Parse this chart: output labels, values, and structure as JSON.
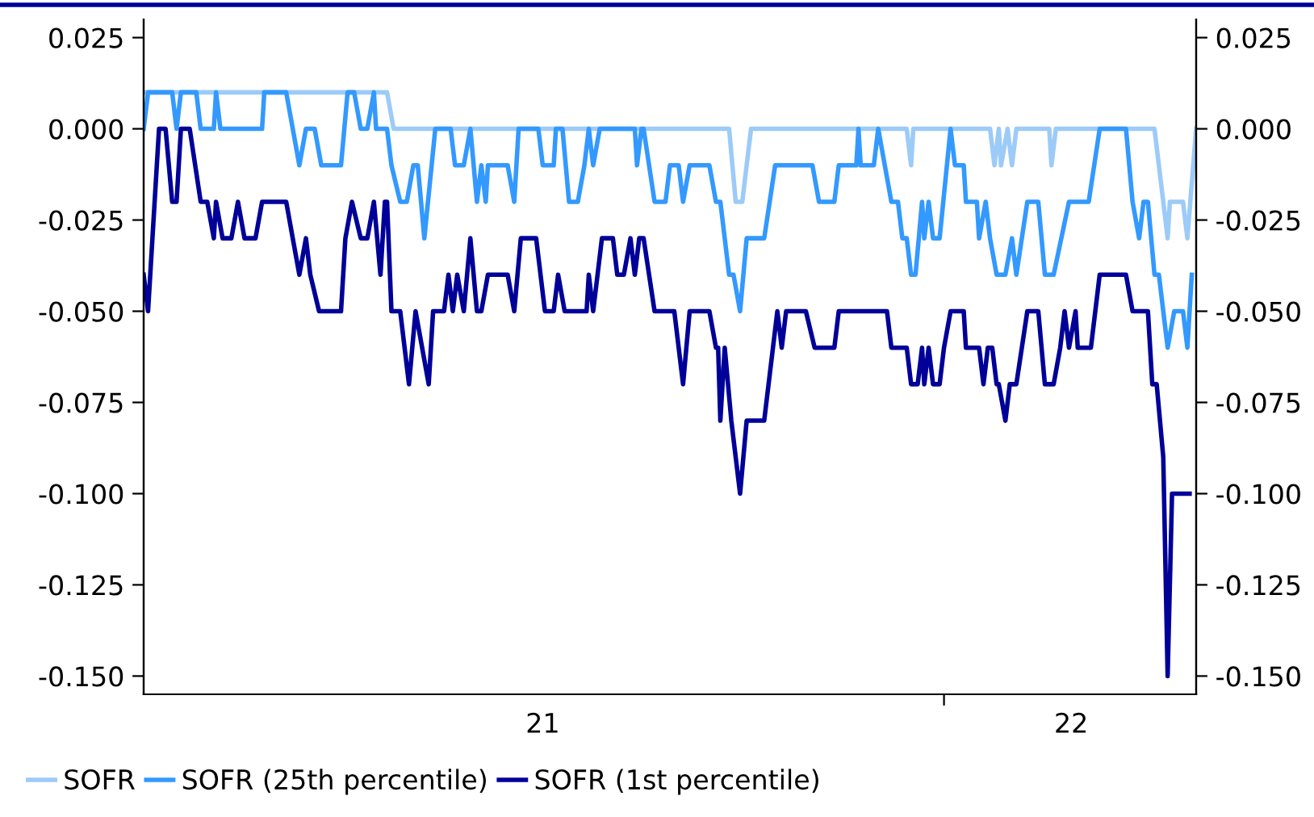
{
  "chart_data": {
    "type": "line",
    "xlim": [
      "2021-01-01",
      "2022-04-26"
    ],
    "xticks": [
      {
        "value": "2021-07-02",
        "label": "21"
      },
      {
        "value": "2022-01-01",
        "label": null
      },
      {
        "value": "2022-02-28",
        "label": "22"
      }
    ],
    "ylim": [
      -0.155,
      0.03
    ],
    "yticks": [
      {
        "value": 0.025,
        "label": "0.025"
      },
      {
        "value": 0,
        "label": "0.000"
      },
      {
        "value": -0.025,
        "label": "-0.025"
      },
      {
        "value": -0.05,
        "label": "-0.050"
      },
      {
        "value": -0.075,
        "label": "-0.075"
      },
      {
        "value": -0.1,
        "label": "-0.100"
      },
      {
        "value": -0.125,
        "label": "-0.125"
      },
      {
        "value": -0.15,
        "label": "-0.150"
      }
    ],
    "y2lim": [
      -0.155,
      0.03
    ],
    "y2ticks": [
      {
        "value": 0.025,
        "label": "0.025"
      },
      {
        "value": 0,
        "label": "0.000"
      },
      {
        "value": -0.025,
        "label": "-0.025"
      },
      {
        "value": -0.05,
        "label": "-0.050"
      },
      {
        "value": -0.075,
        "label": "-0.075"
      },
      {
        "value": -0.1,
        "label": "-0.100"
      },
      {
        "value": -0.125,
        "label": "-0.125"
      },
      {
        "value": -0.15,
        "label": "-0.150"
      }
    ],
    "grid": false,
    "legend": "bottom left",
    "marker": "none",
    "line_style": "solid",
    "series": [
      {
        "name": "SOFR",
        "color": "#9dcbf8",
        "x": [
          "2021-01-01",
          "2021-04-22",
          "2021-04-25",
          "2021-09-25",
          "2021-09-28",
          "2021-10-01",
          "2021-10-03",
          "2021-10-05",
          "2021-12-15",
          "2021-12-17",
          "2021-12-18",
          "2022-01-22",
          "2022-01-24",
          "2022-01-26",
          "2022-01-27",
          "2022-01-30",
          "2022-02-01",
          "2022-02-03",
          "2022-02-18",
          "2022-02-19",
          "2022-02-21",
          "2022-04-07",
          "2022-04-13",
          "2022-04-14",
          "2022-04-20",
          "2022-04-22",
          "2022-04-26"
        ],
        "values": [
          0.01,
          0.01,
          0,
          0,
          -0.02,
          -0.02,
          -0.01,
          0,
          0,
          -0.01,
          0,
          0,
          -0.01,
          0,
          -0.01,
          0,
          -0.01,
          0,
          0,
          -0.01,
          0,
          0,
          -0.03,
          -0.02,
          -0.02,
          -0.03,
          0
        ]
      },
      {
        "name": "SOFR (25th percentile)",
        "color": "#3399ff",
        "x": [
          "2021-01-01",
          "2021-01-03",
          "2021-01-14",
          "2021-01-16",
          "2021-01-18",
          "2021-01-25",
          "2021-01-27",
          "2021-02-02",
          "2021-02-03",
          "2021-02-05",
          "2021-02-24",
          "2021-02-25",
          "2021-03-07",
          "2021-03-10",
          "2021-03-13",
          "2021-03-16",
          "2021-03-20",
          "2021-03-23",
          "2021-04-01",
          "2021-04-04",
          "2021-04-07",
          "2021-04-10",
          "2021-04-13",
          "2021-04-16",
          "2021-04-17",
          "2021-04-22",
          "2021-04-24",
          "2021-04-28",
          "2021-05-01",
          "2021-05-04",
          "2021-05-06",
          "2021-05-09",
          "2021-05-14",
          "2021-05-21",
          "2021-05-23",
          "2021-05-27",
          "2021-05-30",
          "2021-06-02",
          "2021-06-04",
          "2021-06-06",
          "2021-06-07",
          "2021-06-16",
          "2021-06-19",
          "2021-06-21",
          "2021-06-30",
          "2021-07-02",
          "2021-07-07",
          "2021-07-08",
          "2021-07-11",
          "2021-07-14",
          "2021-07-18",
          "2021-07-21",
          "2021-07-23",
          "2021-07-25",
          "2021-07-28",
          "2021-08-13",
          "2021-08-14",
          "2021-08-16",
          "2021-08-17",
          "2021-08-22",
          "2021-08-27",
          "2021-08-29",
          "2021-09-02",
          "2021-09-04",
          "2021-09-07",
          "2021-09-16",
          "2021-09-19",
          "2021-09-21",
          "2021-09-25",
          "2021-09-27",
          "2021-09-30",
          "2021-10-03",
          "2021-10-11",
          "2021-10-16",
          "2021-11-02",
          "2021-11-05",
          "2021-11-12",
          "2021-11-14",
          "2021-11-22",
          "2021-11-23",
          "2021-11-24",
          "2021-11-30",
          "2021-12-02",
          "2021-12-05",
          "2021-12-08",
          "2021-12-11",
          "2021-12-13",
          "2021-12-15",
          "2021-12-17",
          "2021-12-19",
          "2021-12-22",
          "2021-12-23",
          "2021-12-25",
          "2021-12-27",
          "2021-12-30",
          "2022-01-04",
          "2022-01-06",
          "2022-01-10",
          "2022-01-11",
          "2022-01-16",
          "2022-01-17",
          "2022-01-20",
          "2022-01-22",
          "2022-01-25",
          "2022-01-29",
          "2022-02-01",
          "2022-02-03",
          "2022-02-08",
          "2022-02-13",
          "2022-02-16",
          "2022-02-20",
          "2022-02-27",
          "2022-03-08",
          "2022-03-13",
          "2022-03-25",
          "2022-03-28",
          "2022-03-31",
          "2022-04-02",
          "2022-04-04",
          "2022-04-07",
          "2022-04-09",
          "2022-04-13",
          "2022-04-16",
          "2022-04-20",
          "2022-04-22",
          "2022-04-24"
        ],
        "values": [
          0,
          0.01,
          0.01,
          0,
          0.01,
          0.01,
          0,
          0,
          0.01,
          0,
          0,
          0.01,
          0.01,
          0,
          -0.01,
          0,
          0,
          -0.01,
          -0.01,
          0.01,
          0.01,
          0,
          0,
          0.01,
          0,
          0,
          -0.01,
          -0.02,
          -0.02,
          -0.01,
          -0.01,
          -0.03,
          0,
          0,
          -0.01,
          -0.01,
          0,
          -0.02,
          -0.01,
          -0.02,
          -0.01,
          -0.01,
          -0.02,
          0,
          0,
          -0.01,
          -0.01,
          0,
          0,
          -0.02,
          -0.02,
          -0.01,
          0,
          -0.01,
          0,
          0,
          -0.01,
          0,
          0,
          -0.02,
          -0.02,
          -0.01,
          -0.01,
          -0.02,
          -0.01,
          -0.01,
          -0.02,
          -0.02,
          -0.04,
          -0.04,
          -0.05,
          -0.03,
          -0.03,
          -0.01,
          -0.01,
          -0.02,
          -0.02,
          -0.01,
          -0.01,
          0,
          -0.01,
          -0.01,
          0,
          -0.01,
          -0.02,
          -0.02,
          -0.03,
          -0.03,
          -0.04,
          -0.04,
          -0.02,
          -0.03,
          -0.02,
          -0.03,
          -0.03,
          0,
          -0.01,
          -0.01,
          -0.02,
          -0.02,
          -0.03,
          -0.02,
          -0.03,
          -0.04,
          -0.04,
          -0.03,
          -0.04,
          -0.02,
          -0.02,
          -0.04,
          -0.04,
          -0.02,
          -0.02,
          0,
          0,
          -0.02,
          -0.03,
          -0.02,
          -0.02,
          -0.04,
          -0.04,
          -0.06,
          -0.05,
          -0.05,
          -0.06,
          -0.04
        ]
      },
      {
        "name": "SOFR (1st percentile)",
        "color": "#000099",
        "x": [
          "2021-01-01",
          "2021-01-03",
          "2021-01-08",
          "2021-01-11",
          "2021-01-14",
          "2021-01-16",
          "2021-01-18",
          "2021-01-22",
          "2021-01-27",
          "2021-01-30",
          "2021-02-02",
          "2021-02-03",
          "2021-02-06",
          "2021-02-10",
          "2021-02-13",
          "2021-02-16",
          "2021-02-21",
          "2021-02-24",
          "2021-03-07",
          "2021-03-10",
          "2021-03-13",
          "2021-03-16",
          "2021-03-18",
          "2021-03-22",
          "2021-04-01",
          "2021-04-03",
          "2021-04-06",
          "2021-04-10",
          "2021-04-13",
          "2021-04-16",
          "2021-04-19",
          "2021-04-21",
          "2021-04-22",
          "2021-04-24",
          "2021-04-28",
          "2021-05-02",
          "2021-05-05",
          "2021-05-11",
          "2021-05-13",
          "2021-05-18",
          "2021-05-20",
          "2021-05-22",
          "2021-05-24",
          "2021-05-27",
          "2021-05-30",
          "2021-06-02",
          "2021-06-04",
          "2021-06-07",
          "2021-06-16",
          "2021-06-19",
          "2021-06-22",
          "2021-06-29",
          "2021-07-03",
          "2021-07-07",
          "2021-07-09",
          "2021-07-12",
          "2021-07-22",
          "2021-07-23",
          "2021-07-25",
          "2021-07-29",
          "2021-08-03",
          "2021-08-05",
          "2021-08-08",
          "2021-08-11",
          "2021-08-13",
          "2021-08-15",
          "2021-08-17",
          "2021-08-22",
          "2021-08-31",
          "2021-09-04",
          "2021-09-07",
          "2021-09-16",
          "2021-09-19",
          "2021-09-20",
          "2021-09-21",
          "2021-09-23",
          "2021-09-26",
          "2021-09-30",
          "2021-10-03",
          "2021-10-11",
          "2021-10-17",
          "2021-10-19",
          "2021-10-21",
          "2021-10-30",
          "2021-11-03",
          "2021-11-12",
          "2021-11-14",
          "2021-12-06",
          "2021-12-08",
          "2021-12-15",
          "2021-12-17",
          "2021-12-20",
          "2021-12-22",
          "2021-12-23",
          "2021-12-25",
          "2021-12-27",
          "2021-12-30",
          "2022-01-01",
          "2022-01-04",
          "2022-01-10",
          "2022-01-11",
          "2022-01-17",
          "2022-01-19",
          "2022-01-21",
          "2022-01-23",
          "2022-01-25",
          "2022-01-26",
          "2022-01-29",
          "2022-01-31",
          "2022-02-03",
          "2022-02-08",
          "2022-02-13",
          "2022-02-16",
          "2022-02-20",
          "2022-02-23",
          "2022-02-25",
          "2022-02-27",
          "2022-03-02",
          "2022-03-03",
          "2022-03-09",
          "2022-03-13",
          "2022-03-25",
          "2022-03-28",
          "2022-04-04",
          "2022-04-06",
          "2022-04-08",
          "2022-04-11",
          "2022-04-13",
          "2022-04-15",
          "2022-04-23"
        ],
        "values": [
          -0.04,
          -0.05,
          0,
          0,
          -0.02,
          -0.02,
          0,
          0,
          -0.02,
          -0.02,
          -0.03,
          -0.02,
          -0.03,
          -0.03,
          -0.02,
          -0.03,
          -0.03,
          -0.02,
          -0.02,
          -0.03,
          -0.04,
          -0.03,
          -0.04,
          -0.05,
          -0.05,
          -0.03,
          -0.02,
          -0.03,
          -0.03,
          -0.02,
          -0.04,
          -0.02,
          -0.02,
          -0.05,
          -0.05,
          -0.07,
          -0.05,
          -0.07,
          -0.05,
          -0.05,
          -0.04,
          -0.05,
          -0.04,
          -0.05,
          -0.03,
          -0.05,
          -0.05,
          -0.04,
          -0.04,
          -0.05,
          -0.03,
          -0.03,
          -0.05,
          -0.05,
          -0.04,
          -0.05,
          -0.05,
          -0.04,
          -0.05,
          -0.03,
          -0.03,
          -0.04,
          -0.04,
          -0.03,
          -0.04,
          -0.03,
          -0.03,
          -0.05,
          -0.05,
          -0.07,
          -0.05,
          -0.05,
          -0.06,
          -0.06,
          -0.08,
          -0.06,
          -0.08,
          -0.1,
          -0.08,
          -0.08,
          -0.05,
          -0.06,
          -0.05,
          -0.05,
          -0.06,
          -0.06,
          -0.05,
          -0.05,
          -0.06,
          -0.06,
          -0.07,
          -0.07,
          -0.06,
          -0.07,
          -0.06,
          -0.07,
          -0.07,
          -0.06,
          -0.05,
          -0.05,
          -0.06,
          -0.06,
          -0.07,
          -0.06,
          -0.06,
          -0.07,
          -0.07,
          -0.08,
          -0.07,
          -0.07,
          -0.05,
          -0.05,
          -0.07,
          -0.07,
          -0.06,
          -0.05,
          -0.06,
          -0.05,
          -0.06,
          -0.06,
          -0.04,
          -0.04,
          -0.05,
          -0.05,
          -0.07,
          -0.07,
          -0.09,
          -0.15,
          -0.1,
          -0.1
        ]
      }
    ]
  }
}
